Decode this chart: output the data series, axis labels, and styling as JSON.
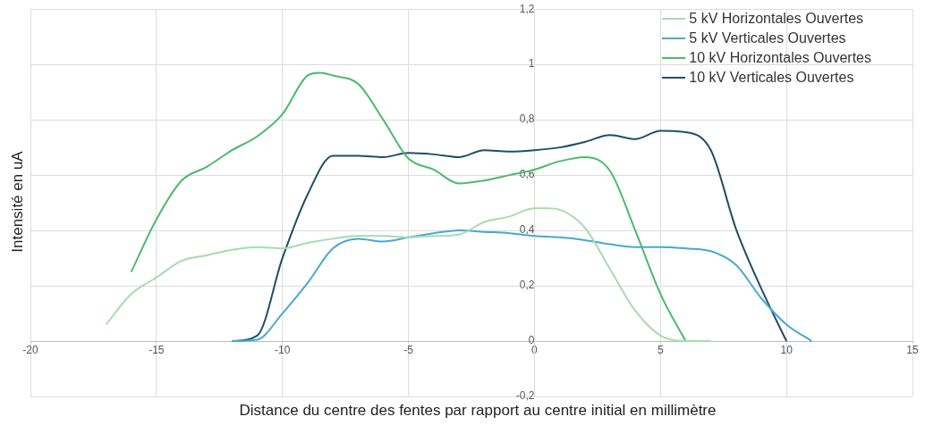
{
  "chart_data": {
    "type": "line",
    "xlabel": "Distance du centre des fentes par rapport au centre initial en millimètre",
    "ylabel": "Intensité en uA",
    "xlim": [
      -20,
      15
    ],
    "xticks": [
      -20,
      -15,
      -10,
      -5,
      0,
      5,
      10,
      15
    ],
    "ylim": [
      -0.2,
      1.2
    ],
    "yticks": [
      {
        "value": -0.2,
        "label": "-0,2"
      },
      0,
      {
        "value": 0.2,
        "label": "0,2"
      },
      {
        "value": 0.4,
        "label": "0,4"
      },
      {
        "value": 0.6,
        "label": "0,6"
      },
      {
        "value": 0.8,
        "label": "0,8"
      },
      1,
      {
        "value": 1.2,
        "label": "1,2"
      }
    ],
    "grid": true,
    "legend": "top right",
    "marker": "none",
    "line_style": "solid",
    "series": [
      {
        "name": "5 kV Horizontales Ouvertes",
        "color": "#a8dbb0",
        "x": [
          -17,
          -16,
          -15,
          -14,
          -13,
          -12,
          -11,
          -10,
          -9,
          -8,
          -7,
          -6,
          -5,
          -4,
          -3,
          -2,
          -1,
          0,
          0.5,
          1,
          2,
          3,
          4,
          5,
          6,
          7
        ],
        "values": [
          0.06,
          0.17,
          0.23,
          0.29,
          0.31,
          0.33,
          0.34,
          0.335,
          0.355,
          0.37,
          0.38,
          0.38,
          0.375,
          0.38,
          0.385,
          0.43,
          0.45,
          0.48,
          0.48,
          0.475,
          0.41,
          0.26,
          0.11,
          0.02,
          0,
          0
        ]
      },
      {
        "name": "5 kV Verticales Ouvertes",
        "color": "#4aa8d0",
        "x": [
          -12,
          -11,
          -10,
          -9,
          -8,
          -7,
          -6,
          -5,
          -4,
          -3,
          -2,
          -1,
          0,
          1,
          2,
          3,
          4,
          5,
          6,
          7,
          8,
          9,
          10,
          11
        ],
        "values": [
          0,
          0.005,
          0.1,
          0.21,
          0.335,
          0.37,
          0.36,
          0.375,
          0.39,
          0.4,
          0.395,
          0.39,
          0.38,
          0.375,
          0.365,
          0.35,
          0.34,
          0.34,
          0.335,
          0.325,
          0.275,
          0.155,
          0.06,
          0
        ]
      },
      {
        "name": "10 kV Horizontales Ouvertes",
        "color": "#4cbb6a",
        "x": [
          -16,
          -15,
          -14,
          -13,
          -12,
          -11,
          -10,
          -9,
          -8.5,
          -8,
          -7,
          -6,
          -5,
          -4,
          -3,
          -2,
          -1,
          0,
          1,
          2,
          3,
          4,
          5,
          6
        ],
        "values": [
          0.25,
          0.44,
          0.58,
          0.63,
          0.69,
          0.74,
          0.82,
          0.96,
          0.97,
          0.96,
          0.93,
          0.8,
          0.66,
          0.62,
          0.57,
          0.58,
          0.6,
          0.62,
          0.65,
          0.665,
          0.615,
          0.4,
          0.17,
          0
        ]
      },
      {
        "name": "10 kV Verticales Ouvertes",
        "color": "#1f4e6a",
        "x": [
          -12,
          -11,
          -10,
          -9,
          -8,
          -7,
          -6,
          -5,
          -4,
          -3,
          -2,
          -1,
          0,
          1,
          2,
          3,
          4,
          5,
          6,
          7,
          8,
          9,
          10
        ],
        "values": [
          0,
          0.02,
          0.3,
          0.53,
          0.67,
          0.67,
          0.665,
          0.68,
          0.675,
          0.665,
          0.69,
          0.685,
          0.69,
          0.7,
          0.72,
          0.745,
          0.73,
          0.76,
          0.755,
          0.69,
          0.405,
          0.19,
          0
        ]
      }
    ]
  }
}
